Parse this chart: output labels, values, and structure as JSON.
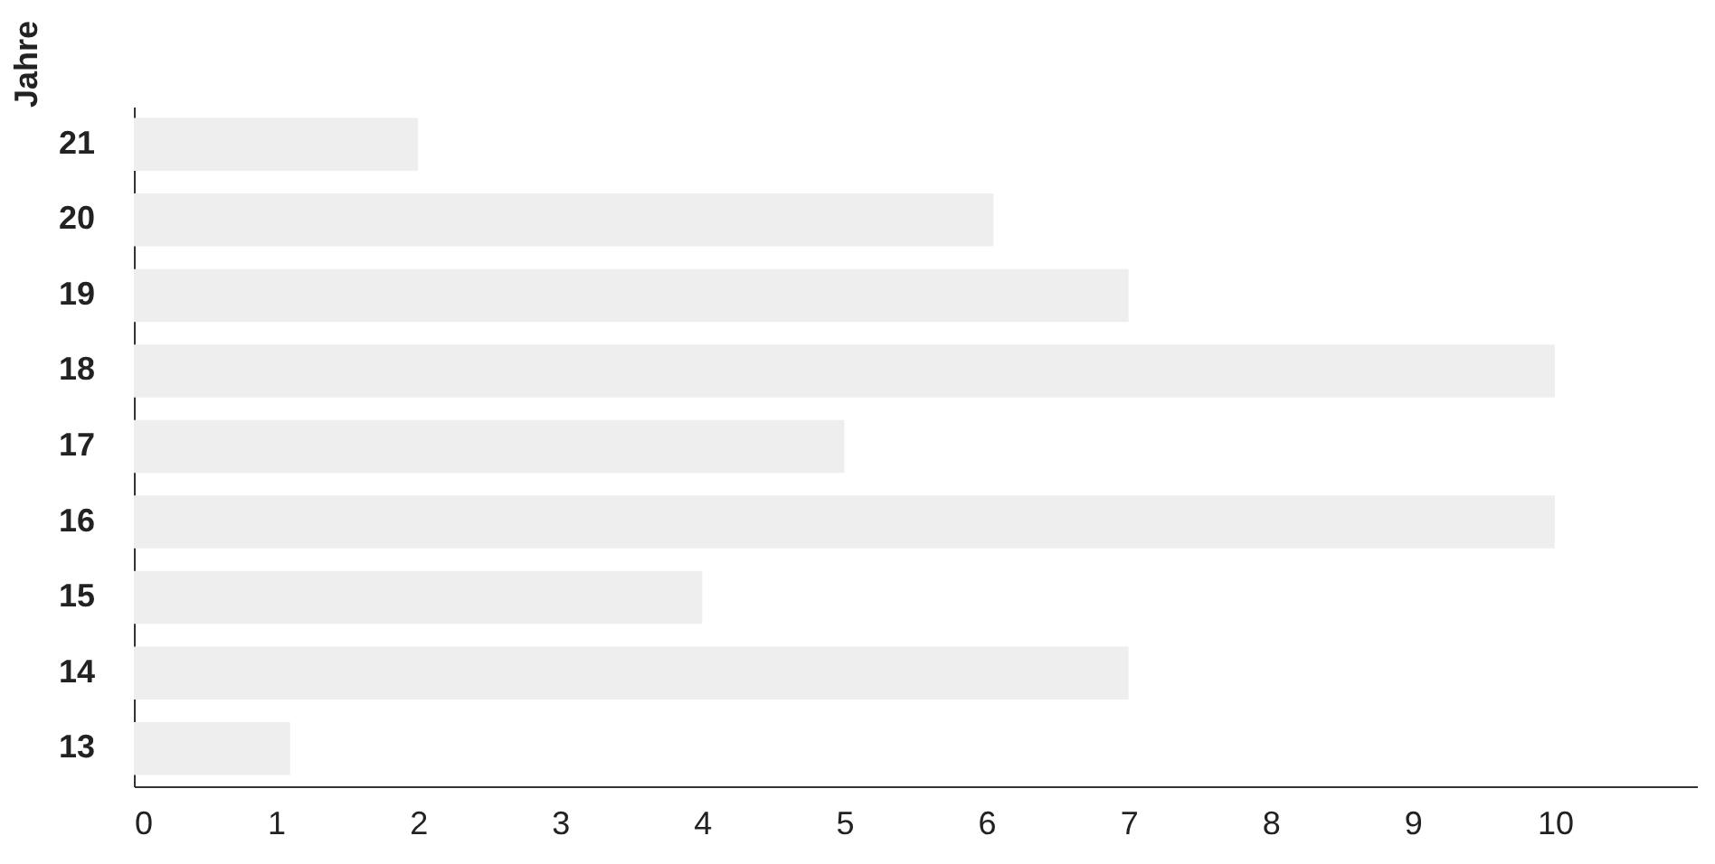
{
  "chart_data": {
    "type": "bar",
    "orientation": "horizontal",
    "ylabel": "Jahre",
    "categories": [
      "21",
      "20",
      "19",
      "18",
      "17",
      "16",
      "15",
      "14",
      "13"
    ],
    "values": [
      2,
      6.05,
      7,
      10,
      5,
      10,
      4,
      7,
      1.1
    ],
    "color": "#eeeeee",
    "xlim": [
      0,
      11
    ],
    "xticks": [
      0,
      1,
      2,
      3,
      4,
      5,
      6,
      7,
      8,
      9,
      10
    ],
    "grid": false
  }
}
